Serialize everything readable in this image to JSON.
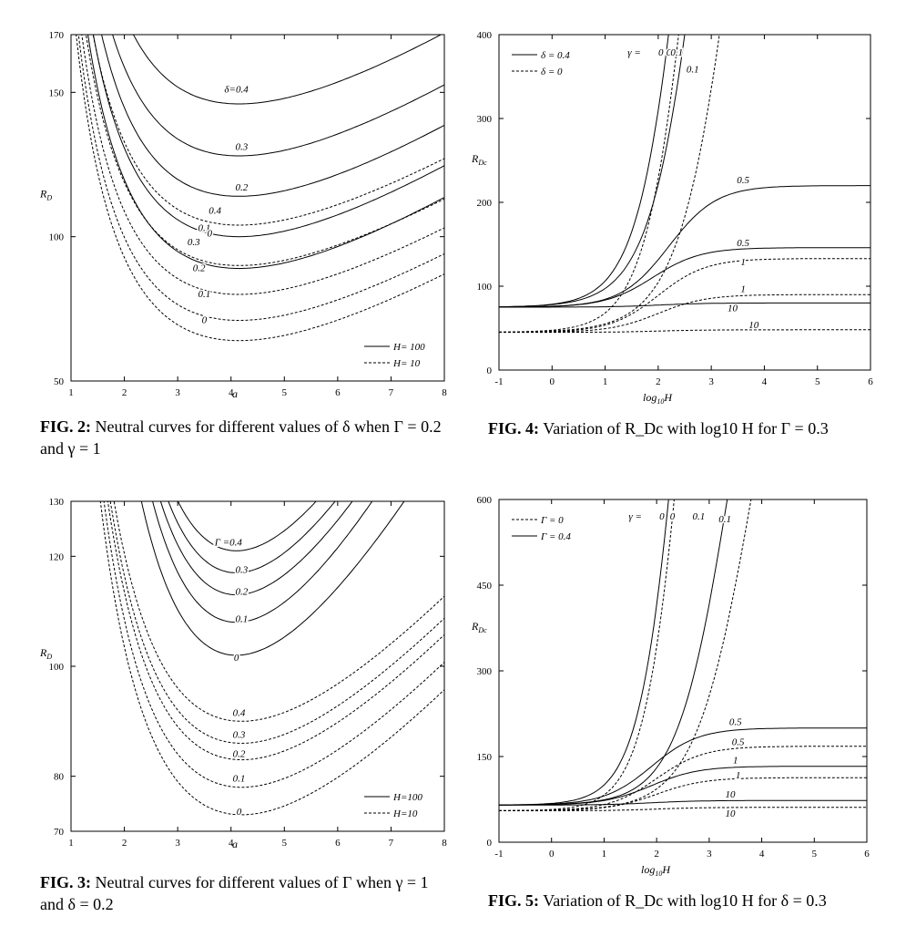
{
  "figures": [
    {
      "id": "fig2",
      "caption_label": "FIG. 2:",
      "caption_text": "Neutral curves for different values of δ when Γ = 0.2 and γ = 1",
      "chart_data": {
        "type": "line",
        "xlabel": "a",
        "ylabel": "R_D",
        "xlim": [
          1,
          8
        ],
        "ylim": [
          50,
          170
        ],
        "xticks": [
          "1",
          "2",
          "3",
          "4",
          "5",
          "6",
          "7",
          "8"
        ],
        "yticks": [
          "50",
          "100",
          "150",
          "170"
        ],
        "legend": [
          {
            "name": "H= 100",
            "style": "solid"
          },
          {
            "name": "H= 10",
            "style": "dashed"
          }
        ],
        "curve_label_prefix": "δ=",
        "series": [
          {
            "name": "0.4",
            "style": "solid",
            "min_x": 4.15,
            "min_y": 146,
            "k": 3.2,
            "label_x": 4.1,
            "label_y": 150
          },
          {
            "name": "0.3",
            "style": "solid",
            "min_x": 4.15,
            "min_y": 128,
            "k": 3.2,
            "label_x": 4.2,
            "label_y": 130
          },
          {
            "name": "0.2",
            "style": "solid",
            "min_x": 4.15,
            "min_y": 114,
            "k": 3.2,
            "label_x": 4.2,
            "label_y": 116
          },
          {
            "name": "0.1",
            "style": "solid",
            "min_x": 4.15,
            "min_y": 100,
            "k": 3.2,
            "label_x": 3.5,
            "label_y": 102
          },
          {
            "name": "0",
            "style": "solid",
            "min_x": 4.15,
            "min_y": 89,
            "k": 3.2,
            "label_x": 3.6,
            "label_y": 100
          },
          {
            "name": "0.4",
            "style": "dashed",
            "min_x": 4.15,
            "min_y": 104,
            "k": 3.0,
            "label_x": 3.7,
            "label_y": 108
          },
          {
            "name": "0.3",
            "style": "dashed",
            "min_x": 4.15,
            "min_y": 90,
            "k": 3.0,
            "label_x": 3.3,
            "label_y": 97
          },
          {
            "name": "0.2",
            "style": "dashed",
            "min_x": 4.15,
            "min_y": 80,
            "k": 3.0,
            "label_x": 3.4,
            "label_y": 88
          },
          {
            "name": "0.1",
            "style": "dashed",
            "min_x": 4.15,
            "min_y": 71,
            "k": 3.0,
            "label_x": 3.5,
            "label_y": 79
          },
          {
            "name": "0",
            "style": "dashed",
            "min_x": 4.15,
            "min_y": 64,
            "k": 3.0,
            "label_x": 3.5,
            "label_y": 70
          }
        ]
      }
    },
    {
      "id": "fig4",
      "caption_label": "FIG. 4:",
      "caption_text": "Variation of R_Dc with log10 H for Γ = 0.3",
      "chart_data": {
        "type": "line",
        "xlabel": "log10H",
        "ylabel": "RDc",
        "xlim": [
          -1,
          6
        ],
        "ylim": [
          0,
          400
        ],
        "xticks": [
          "-1",
          "0",
          "1",
          "2",
          "3",
          "4",
          "5",
          "6"
        ],
        "yticks": [
          "0",
          "100",
          "200",
          "300",
          "400"
        ],
        "legend": [
          {
            "name": "δ = 0.4",
            "style": "solid"
          },
          {
            "name": "δ = 0",
            "style": "dashed"
          }
        ],
        "gamma_label": "γ = 0",
        "series": [
          {
            "name": "0",
            "style": "solid",
            "y0": 75,
            "y1": 1200,
            "center": 2.6,
            "width": 0.45,
            "label_x": 2.05,
            "label_y": 375
          },
          {
            "name": "0",
            "style": "dashed",
            "y0": 45,
            "y1": 1200,
            "center": 2.75,
            "width": 0.45,
            "label_x": 2.2,
            "label_y": 375
          },
          {
            "name": "0.1",
            "style": "solid",
            "y0": 75,
            "y1": 1200,
            "center": 2.95,
            "width": 0.5,
            "label_x": 2.35,
            "label_y": 375
          },
          {
            "name": "0.1",
            "style": "dashed",
            "y0": 45,
            "y1": 1200,
            "center": 3.6,
            "width": 0.55,
            "label_x": 2.65,
            "label_y": 355
          },
          {
            "name": "0.5",
            "style": "solid",
            "y0": 75,
            "y1": 220,
            "center": 2.2,
            "width": 0.45,
            "label_x": 3.6,
            "label_y": 223
          },
          {
            "name": "0.5",
            "style": "solid",
            "y0": 75,
            "y1": 146,
            "center": 1.9,
            "width": 0.45,
            "label_x": 3.6,
            "label_y": 148
          },
          {
            "name": "1",
            "style": "dashed",
            "y0": 45,
            "y1": 133,
            "center": 2.0,
            "width": 0.45,
            "label_x": 3.6,
            "label_y": 125
          },
          {
            "name": "1",
            "style": "dashed",
            "y0": 45,
            "y1": 90,
            "center": 2.0,
            "width": 0.45,
            "label_x": 3.6,
            "label_y": 93
          },
          {
            "name": "10",
            "style": "solid",
            "y0": 75,
            "y1": 80,
            "center": 2.0,
            "width": 0.45,
            "label_x": 3.4,
            "label_y": 70
          },
          {
            "name": "10",
            "style": "dashed",
            "y0": 45,
            "y1": 48,
            "center": 2.0,
            "width": 0.45,
            "label_x": 3.8,
            "label_y": 50
          }
        ]
      }
    },
    {
      "id": "fig3",
      "caption_label": "FIG. 3:",
      "caption_text": "Neutral curves for different values of Γ when γ = 1 and δ = 0.2",
      "chart_data": {
        "type": "line",
        "xlabel": "a",
        "ylabel": "R_D",
        "xlim": [
          1,
          8
        ],
        "ylim": [
          70,
          130
        ],
        "xticks": [
          "1",
          "2",
          "3",
          "4",
          "5",
          "6",
          "7",
          "8"
        ],
        "yticks": [
          "70",
          "80",
          "100",
          "120",
          "130"
        ],
        "legend": [
          {
            "name": "H=100",
            "style": "solid"
          },
          {
            "name": "H=10",
            "style": "dashed"
          }
        ],
        "curve_label_prefix": "Γ =",
        "series": [
          {
            "name": "0.4",
            "style": "solid",
            "min_x": 4.1,
            "min_y": 121,
            "k": 5.5,
            "label_x": 3.95,
            "label_y": 122
          },
          {
            "name": "0.3",
            "style": "solid",
            "min_x": 4.1,
            "min_y": 117,
            "k": 5.5,
            "label_x": 4.2,
            "label_y": 117
          },
          {
            "name": "0.2",
            "style": "solid",
            "min_x": 4.1,
            "min_y": 113,
            "k": 5.5,
            "label_x": 4.2,
            "label_y": 113
          },
          {
            "name": "0.1",
            "style": "solid",
            "min_x": 4.1,
            "min_y": 108,
            "k": 5.5,
            "label_x": 4.2,
            "label_y": 108
          },
          {
            "name": "0",
            "style": "solid",
            "min_x": 4.1,
            "min_y": 102,
            "k": 5.0,
            "label_x": 4.1,
            "label_y": 101
          },
          {
            "name": "0.4",
            "style": "dashed",
            "min_x": 4.2,
            "min_y": 90,
            "k": 3.0,
            "label_x": 4.15,
            "label_y": 91
          },
          {
            "name": "0.3",
            "style": "dashed",
            "min_x": 4.2,
            "min_y": 86,
            "k": 3.0,
            "label_x": 4.15,
            "label_y": 87
          },
          {
            "name": "0.2",
            "style": "dashed",
            "min_x": 4.2,
            "min_y": 83,
            "k": 3.0,
            "label_x": 4.15,
            "label_y": 83.5
          },
          {
            "name": "0.1",
            "style": "dashed",
            "min_x": 4.2,
            "min_y": 78,
            "k": 3.0,
            "label_x": 4.15,
            "label_y": 79
          },
          {
            "name": "0",
            "style": "dashed",
            "min_x": 4.2,
            "min_y": 73,
            "k": 3.0,
            "label_x": 4.15,
            "label_y": 73
          }
        ]
      }
    },
    {
      "id": "fig5",
      "caption_label": "FIG. 5:",
      "caption_text": "Variation of R_Dc with log10 H for δ = 0.3",
      "chart_data": {
        "type": "line",
        "xlabel": "log10H",
        "ylabel": "RDc",
        "xlim": [
          -1,
          6
        ],
        "ylim": [
          0,
          600
        ],
        "xticks": [
          "-1",
          "0",
          "1",
          "2",
          "3",
          "4",
          "5",
          "6"
        ],
        "yticks": [
          "0",
          "150",
          "300",
          "450",
          "600"
        ],
        "legend": [
          {
            "name": "Γ = 0",
            "style": "dashed"
          },
          {
            "name": "Γ = 0.4",
            "style": "solid"
          }
        ],
        "gamma_label": "γ = 0",
        "series": [
          {
            "name": "0",
            "style": "solid",
            "y0": 65,
            "y1": 1800,
            "center": 2.55,
            "width": 0.4,
            "label_x": 2.1,
            "label_y": 565
          },
          {
            "name": "0",
            "style": "dashed",
            "y0": 55,
            "y1": 1800,
            "center": 2.65,
            "width": 0.4,
            "label_x": 2.3,
            "label_y": 565
          },
          {
            "name": "0.1",
            "style": "solid",
            "y0": 65,
            "y1": 1200,
            "center": 3.4,
            "width": 0.5,
            "label_x": 2.8,
            "label_y": 565
          },
          {
            "name": "0.1",
            "style": "dashed",
            "y0": 55,
            "y1": 1200,
            "center": 3.85,
            "width": 0.55,
            "label_x": 3.3,
            "label_y": 560
          },
          {
            "name": "0.5",
            "style": "solid",
            "y0": 65,
            "y1": 200,
            "center": 1.9,
            "width": 0.45,
            "label_x": 3.5,
            "label_y": 205
          },
          {
            "name": "0.5",
            "style": "dashed",
            "y0": 55,
            "y1": 168,
            "center": 2.0,
            "width": 0.45,
            "label_x": 3.55,
            "label_y": 170
          },
          {
            "name": "1",
            "style": "solid",
            "y0": 65,
            "y1": 133,
            "center": 1.9,
            "width": 0.45,
            "label_x": 3.5,
            "label_y": 138
          },
          {
            "name": "1",
            "style": "dashed",
            "y0": 55,
            "y1": 113,
            "center": 2.0,
            "width": 0.45,
            "label_x": 3.55,
            "label_y": 112
          },
          {
            "name": "10",
            "style": "solid",
            "y0": 65,
            "y1": 73,
            "center": 1.9,
            "width": 0.45,
            "label_x": 3.4,
            "label_y": 78
          },
          {
            "name": "10",
            "style": "dashed",
            "y0": 55,
            "y1": 61,
            "center": 2.0,
            "width": 0.45,
            "label_x": 3.4,
            "label_y": 45
          }
        ]
      }
    }
  ]
}
